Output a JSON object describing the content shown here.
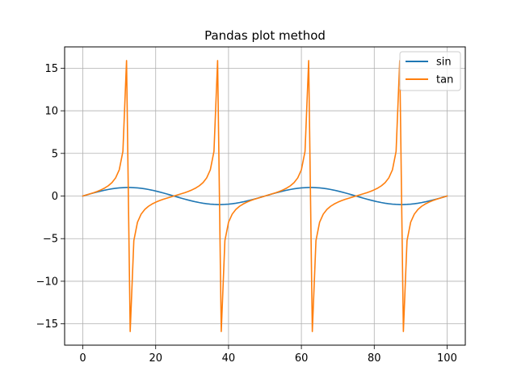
{
  "chart_data": {
    "type": "line",
    "title": "Pandas plot method",
    "xlabel": "",
    "ylabel": "",
    "xlim": [
      -5,
      105
    ],
    "ylim": [
      -17.5,
      17.5
    ],
    "x_ticks": [
      0,
      20,
      40,
      60,
      80,
      100
    ],
    "y_ticks": [
      -15,
      -10,
      -5,
      0,
      5,
      10,
      15
    ],
    "grid": true,
    "legend_position": "upper-right",
    "x": [
      0,
      1,
      2,
      3,
      4,
      5,
      6,
      7,
      8,
      9,
      10,
      11,
      12,
      13,
      14,
      15,
      16,
      17,
      18,
      19,
      20,
      21,
      22,
      23,
      24,
      25,
      26,
      27,
      28,
      29,
      30,
      31,
      32,
      33,
      34,
      35,
      36,
      37,
      38,
      39,
      40,
      41,
      42,
      43,
      44,
      45,
      46,
      47,
      48,
      49,
      50,
      51,
      52,
      53,
      54,
      55,
      56,
      57,
      58,
      59,
      60,
      61,
      62,
      63,
      64,
      65,
      66,
      67,
      68,
      69,
      70,
      71,
      72,
      73,
      74,
      75,
      76,
      77,
      78,
      79,
      80,
      81,
      82,
      83,
      84,
      85,
      86,
      87,
      88,
      89,
      90,
      91,
      92,
      93,
      94,
      95,
      96,
      97,
      98,
      99,
      100
    ],
    "series": [
      {
        "name": "sin",
        "color": "#1f77b4",
        "values": [
          0.0,
          0.1253,
          0.2487,
          0.3681,
          0.4818,
          0.5878,
          0.6845,
          0.7705,
          0.8443,
          0.9048,
          0.9511,
          0.9823,
          0.998,
          0.998,
          0.9823,
          0.9511,
          0.9048,
          0.8443,
          0.7705,
          0.6845,
          0.5878,
          0.4818,
          0.3681,
          0.2487,
          0.1253,
          0.0,
          -0.1253,
          -0.2487,
          -0.3681,
          -0.4818,
          -0.5878,
          -0.6845,
          -0.7705,
          -0.8443,
          -0.9048,
          -0.9511,
          -0.9823,
          -0.998,
          -0.998,
          -0.9823,
          -0.9511,
          -0.9048,
          -0.8443,
          -0.7705,
          -0.6845,
          -0.5878,
          -0.4818,
          -0.3681,
          -0.2487,
          -0.1253,
          0.0,
          0.1253,
          0.2487,
          0.3681,
          0.4818,
          0.5878,
          0.6845,
          0.7705,
          0.8443,
          0.9048,
          0.9511,
          0.9823,
          0.998,
          0.998,
          0.9823,
          0.9511,
          0.9048,
          0.8443,
          0.7705,
          0.6845,
          0.5878,
          0.4818,
          0.3681,
          0.2487,
          0.1253,
          0.0,
          -0.1253,
          -0.2487,
          -0.3681,
          -0.4818,
          -0.5878,
          -0.6845,
          -0.7705,
          -0.8443,
          -0.9048,
          -0.9511,
          -0.9823,
          -0.998,
          -0.998,
          -0.9823,
          -0.9511,
          -0.9048,
          -0.8443,
          -0.7705,
          -0.6845,
          -0.5878,
          -0.4818,
          -0.3681,
          -0.2487,
          -0.1253,
          0.0
        ]
      },
      {
        "name": "tan",
        "color": "#ff7f0e",
        "values": [
          0.0,
          0.1263,
          0.2568,
          0.3959,
          0.5498,
          0.7265,
          0.9391,
          1.2088,
          1.5773,
          2.1272,
          3.0777,
          5.2422,
          15.8945,
          -15.8945,
          -5.2422,
          -3.0777,
          -2.1272,
          -1.5773,
          -1.2088,
          -0.9391,
          -0.7265,
          -0.5498,
          -0.3959,
          -0.2568,
          -0.1263,
          0.0,
          0.1263,
          0.2568,
          0.3959,
          0.5498,
          0.7265,
          0.9391,
          1.2088,
          1.5773,
          2.1272,
          3.0777,
          5.2422,
          15.8945,
          -15.8945,
          -5.2422,
          -3.0777,
          -2.1272,
          -1.5773,
          -1.2088,
          -0.9391,
          -0.7265,
          -0.5498,
          -0.3959,
          -0.2568,
          -0.1263,
          0.0,
          0.1263,
          0.2568,
          0.3959,
          0.5498,
          0.7265,
          0.9391,
          1.2088,
          1.5773,
          2.1272,
          3.0777,
          5.2422,
          15.8945,
          -15.8945,
          -5.2422,
          -3.0777,
          -2.1272,
          -1.5773,
          -1.2088,
          -0.9391,
          -0.7265,
          -0.5498,
          -0.3959,
          -0.2568,
          -0.1263,
          0.0,
          0.1263,
          0.2568,
          0.3959,
          0.5498,
          0.7265,
          0.9391,
          1.2088,
          1.5773,
          2.1272,
          3.0777,
          5.2422,
          15.8945,
          -15.8945,
          -5.2422,
          -3.0777,
          -2.1272,
          -1.5773,
          -1.2088,
          -0.9391,
          -0.7265,
          -0.5498,
          -0.3959,
          -0.2568,
          -0.1263,
          0.0
        ]
      }
    ]
  }
}
